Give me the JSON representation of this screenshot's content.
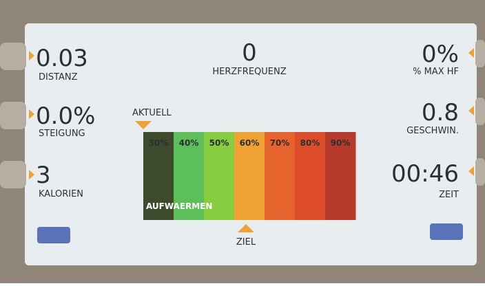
{
  "left_metrics": [
    {
      "value": "0.03",
      "label": "DISTANZ"
    },
    {
      "value": "0.0%",
      "label": "STEIGUNG"
    },
    {
      "value": "3",
      "label": "KALORIEN"
    }
  ],
  "center_metric": {
    "value": "0",
    "label": "HERZFREQUENZ"
  },
  "right_metrics": [
    {
      "value": "0%",
      "label": "% MAX HF"
    },
    {
      "value": "0.8",
      "label": "GESCHWIN."
    },
    {
      "value": "00:46",
      "label": "ZEIT"
    }
  ],
  "zone_bar": {
    "current_label": "AKTUELL",
    "target_label": "ZIEL",
    "phase": "AUFWAERMEN",
    "zones": [
      {
        "label": "30%",
        "color": "#3d4a2c"
      },
      {
        "label": "40%",
        "color": "#5cbf5a"
      },
      {
        "label": "50%",
        "color": "#86cc3e"
      },
      {
        "label": "60%",
        "color": "#eea233"
      },
      {
        "label": "70%",
        "color": "#e7632d"
      },
      {
        "label": "80%",
        "color": "#de4d2a"
      },
      {
        "label": "90%",
        "color": "#b83a2c"
      }
    ]
  }
}
